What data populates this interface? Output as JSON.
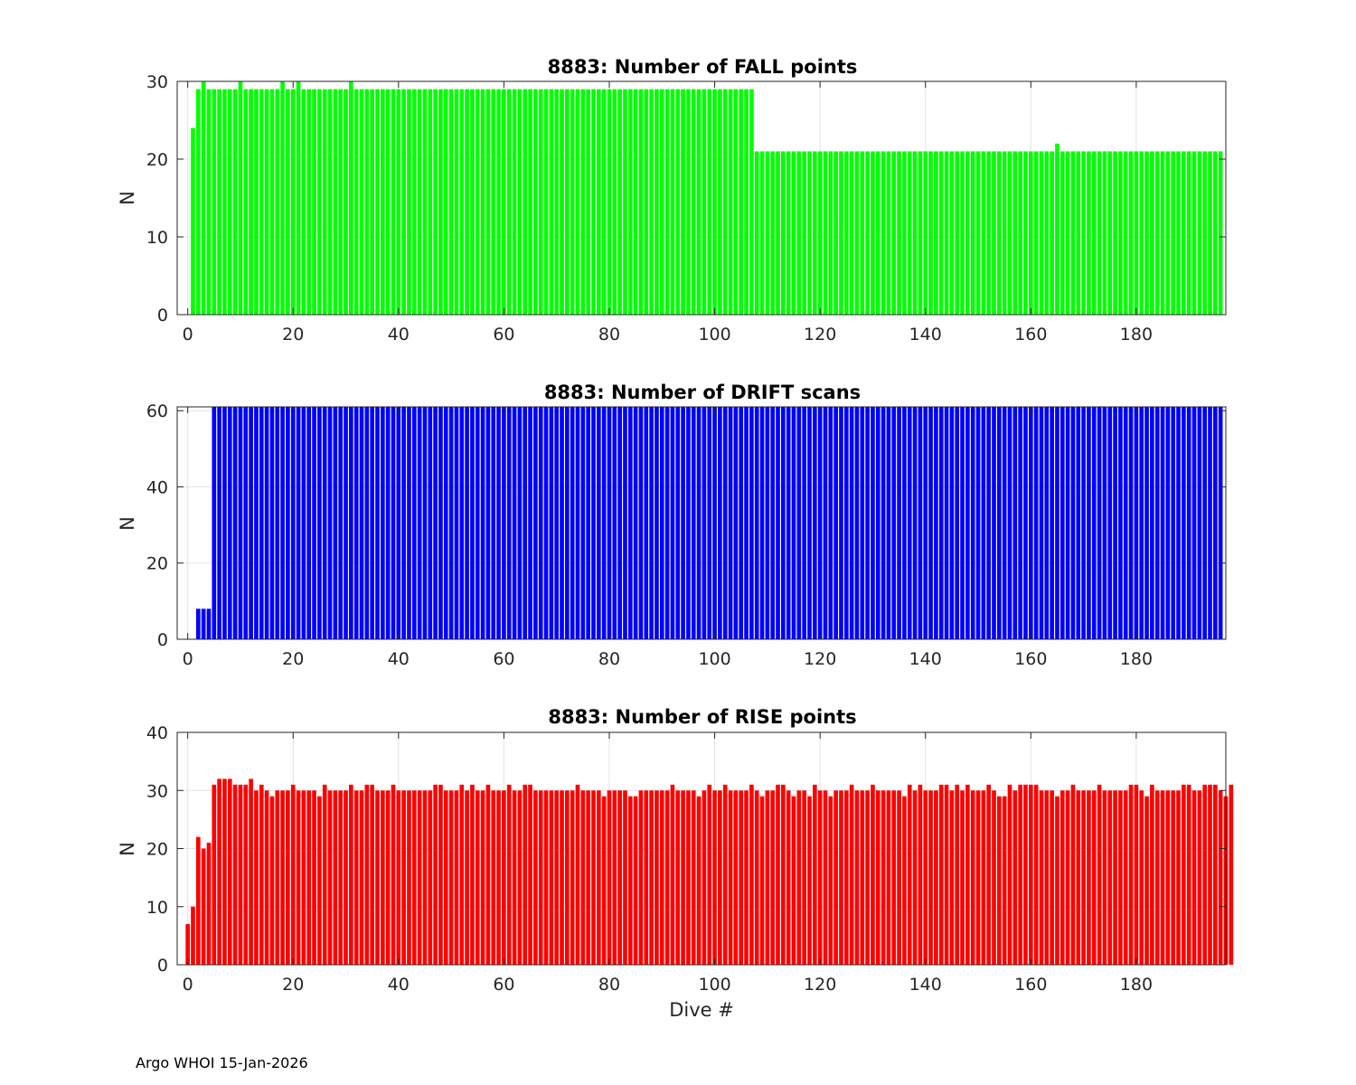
{
  "footer": "Argo WHOI 15-Jan-2026",
  "chart_data": [
    {
      "type": "bar",
      "title": "8883: Number of FALL points",
      "xlabel": "",
      "ylabel": "N",
      "color": "#00ff00",
      "xlim": [
        -2,
        197
      ],
      "ylim": [
        0,
        30
      ],
      "xticks": [
        0,
        20,
        40,
        60,
        80,
        100,
        120,
        140,
        160,
        180
      ],
      "yticks": [
        0,
        10,
        20,
        30
      ],
      "x_start": 0,
      "values": [
        0,
        24,
        29,
        30,
        29,
        29,
        29,
        29,
        29,
        29,
        30,
        29,
        29,
        29,
        29,
        29,
        29,
        29,
        30,
        29,
        29,
        30,
        29,
        29,
        29,
        29,
        29,
        29,
        29,
        29,
        29,
        30,
        29,
        29,
        29,
        29,
        29,
        29,
        29,
        29,
        29,
        29,
        29,
        29,
        29,
        29,
        29,
        29,
        29,
        29,
        29,
        29,
        29,
        29,
        29,
        29,
        29,
        29,
        29,
        29,
        29,
        29,
        29,
        29,
        29,
        29,
        29,
        29,
        29,
        29,
        29,
        29,
        29,
        29,
        29,
        29,
        29,
        29,
        29,
        29,
        29,
        29,
        29,
        29,
        29,
        29,
        29,
        29,
        29,
        29,
        29,
        29,
        29,
        29,
        29,
        29,
        29,
        29,
        29,
        29,
        29,
        29,
        29,
        29,
        29,
        29,
        29,
        29,
        21,
        21,
        21,
        21,
        21,
        21,
        21,
        21,
        21,
        21,
        21,
        21,
        21,
        21,
        21,
        21,
        21,
        21,
        21,
        21,
        21,
        21,
        21,
        21,
        21,
        21,
        21,
        21,
        21,
        21,
        21,
        21,
        21,
        21,
        21,
        21,
        21,
        21,
        21,
        21,
        21,
        21,
        21,
        21,
        21,
        21,
        21,
        21,
        21,
        21,
        21,
        21,
        21,
        21,
        21,
        21,
        21,
        22,
        21,
        21,
        21,
        21,
        21,
        21,
        21,
        21,
        21,
        21,
        21,
        21,
        21,
        21,
        21,
        21,
        21,
        21,
        21,
        21,
        21,
        21,
        21,
        21,
        21,
        21,
        21,
        21,
        21,
        21,
        21
      ]
    },
    {
      "type": "bar",
      "title": "8883: Number of DRIFT scans",
      "xlabel": "",
      "ylabel": "N",
      "color": "#0000ff",
      "xlim": [
        -2,
        197
      ],
      "ylim": [
        0,
        61
      ],
      "xticks": [
        0,
        20,
        40,
        60,
        80,
        100,
        120,
        140,
        160,
        180
      ],
      "yticks": [
        0,
        20,
        40,
        60
      ],
      "x_start": 0,
      "values": [
        0,
        0,
        8,
        8,
        8,
        61,
        61,
        61,
        61,
        61,
        61,
        61,
        61,
        61,
        61,
        61,
        61,
        61,
        61,
        61,
        61,
        61,
        61,
        61,
        61,
        61,
        61,
        61,
        61,
        61,
        61,
        61,
        61,
        61,
        61,
        61,
        61,
        61,
        61,
        61,
        61,
        61,
        61,
        61,
        61,
        61,
        61,
        61,
        61,
        61,
        61,
        61,
        61,
        61,
        61,
        61,
        61,
        61,
        61,
        61,
        61,
        61,
        61,
        61,
        61,
        61,
        61,
        61,
        61,
        61,
        61,
        61,
        61,
        61,
        61,
        61,
        61,
        61,
        61,
        61,
        61,
        61,
        61,
        61,
        61,
        61,
        61,
        61,
        61,
        61,
        61,
        61,
        61,
        61,
        61,
        61,
        61,
        61,
        61,
        61,
        61,
        61,
        61,
        61,
        61,
        61,
        61,
        61,
        61,
        61,
        61,
        61,
        61,
        61,
        61,
        61,
        61,
        61,
        61,
        61,
        61,
        61,
        61,
        61,
        61,
        61,
        61,
        61,
        61,
        61,
        61,
        61,
        61,
        61,
        61,
        61,
        61,
        61,
        61,
        61,
        61,
        61,
        61,
        61,
        61,
        61,
        61,
        61,
        61,
        61,
        61,
        61,
        61,
        61,
        61,
        61,
        61,
        61,
        61,
        61,
        61,
        61,
        61,
        61,
        61,
        61,
        61,
        61,
        61,
        61,
        61,
        61,
        61,
        61,
        61,
        61,
        61,
        61,
        61,
        61,
        61,
        61,
        61,
        61,
        61,
        61,
        61,
        61,
        61,
        61,
        61,
        61,
        61,
        61,
        61,
        61,
        61
      ]
    },
    {
      "type": "bar",
      "title": "8883: Number of RISE points",
      "xlabel": "Dive #",
      "ylabel": "N",
      "color": "#ff0000",
      "xlim": [
        -2,
        197
      ],
      "ylim": [
        0,
        40
      ],
      "xticks": [
        0,
        20,
        40,
        60,
        80,
        100,
        120,
        140,
        160,
        180
      ],
      "yticks": [
        0,
        10,
        20,
        30,
        40
      ],
      "x_start": 0,
      "values": [
        7,
        10,
        22,
        20,
        21,
        31,
        32,
        32,
        32,
        31,
        31,
        31,
        32,
        30,
        31,
        30,
        29,
        30,
        30,
        30,
        31,
        30,
        30,
        30,
        30,
        29,
        31,
        30,
        30,
        30,
        30,
        31,
        30,
        30,
        31,
        31,
        30,
        30,
        30,
        31,
        30,
        30,
        30,
        30,
        30,
        30,
        30,
        31,
        31,
        30,
        30,
        30,
        31,
        30,
        31,
        30,
        30,
        31,
        30,
        30,
        30,
        31,
        30,
        30,
        31,
        31,
        30,
        30,
        30,
        30,
        30,
        30,
        30,
        30,
        31,
        30,
        30,
        30,
        30,
        29,
        30,
        30,
        30,
        30,
        29,
        29,
        30,
        30,
        30,
        30,
        30,
        30,
        31,
        30,
        30,
        30,
        30,
        29,
        30,
        31,
        30,
        30,
        31,
        30,
        30,
        30,
        30,
        31,
        30,
        29,
        30,
        30,
        31,
        31,
        30,
        29,
        30,
        30,
        29,
        31,
        30,
        30,
        29,
        30,
        30,
        30,
        31,
        30,
        30,
        30,
        31,
        30,
        30,
        30,
        30,
        30,
        29,
        31,
        30,
        31,
        30,
        30,
        30,
        31,
        31,
        30,
        31,
        30,
        31,
        30,
        30,
        30,
        31,
        30,
        29,
        29,
        31,
        30,
        31,
        31,
        31,
        31,
        30,
        30,
        30,
        29,
        30,
        30,
        31,
        30,
        30,
        30,
        30,
        31,
        30,
        30,
        30,
        30,
        30,
        31,
        31,
        30,
        29,
        31,
        30,
        30,
        30,
        30,
        30,
        31,
        31,
        30,
        30,
        31,
        31,
        31,
        30,
        29,
        31
      ]
    }
  ]
}
